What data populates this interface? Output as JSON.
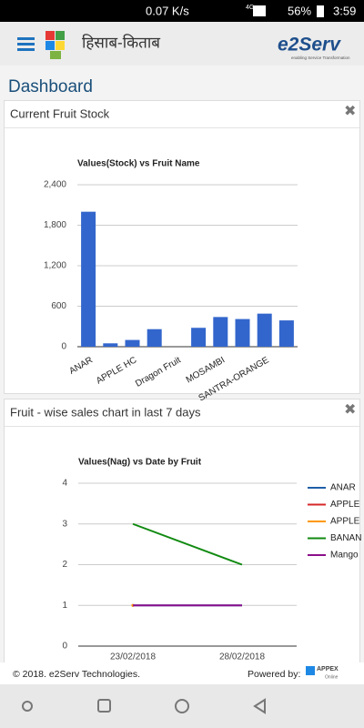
{
  "status_bar": {
    "speed": "0.07 K/s",
    "network": "4G",
    "battery": "56%",
    "time": "3:59"
  },
  "header": {
    "app_name": "हिसाब-किताब",
    "logo": "e2Serv",
    "tagline": "enabling Service Transformation"
  },
  "page_title": "Dashboard",
  "panels": [
    {
      "title": "Current Fruit Stock"
    },
    {
      "title": "Fruit - wise sales chart in last 7 days"
    }
  ],
  "chart_data": [
    {
      "type": "bar",
      "title": "Values(Stock) vs Fruit Name",
      "categories": [
        "ANAR",
        null,
        "APPLE HC",
        null,
        "Dragon Fruit",
        null,
        "MOSAMBI",
        null,
        "SANTRA-ORANGE",
        null
      ],
      "values": [
        2000,
        50,
        100,
        260,
        0,
        280,
        440,
        410,
        490,
        390
      ],
      "color": "#3366cc",
      "ylim": [
        0,
        2400
      ],
      "yticks": [
        0,
        {
          "value": 600,
          "label": "600"
        },
        {
          "value": 1200,
          "label": "1,200"
        },
        {
          "value": 1800,
          "label": "1,800"
        },
        {
          "value": 2400,
          "label": "2,400"
        }
      ],
      "grid": true
    },
    {
      "type": "line",
      "title": "Values(Nag) vs Date by Fruit",
      "categories": [
        "23/02/2018",
        "28/02/2018"
      ],
      "series": [
        {
          "name": "ANAR",
          "color": "#1f5fa8",
          "values": [
            1,
            1
          ]
        },
        {
          "name": "APPLE",
          "color": "#d62728",
          "values": [
            1,
            null
          ]
        },
        {
          "name": "APPLE",
          "color": "#ff9900",
          "values": [
            1,
            null
          ]
        },
        {
          "name": "BANAN",
          "color": "#108a10",
          "values": [
            3,
            2
          ]
        },
        {
          "name": "Mango",
          "color": "#8b108b",
          "values": [
            1,
            1
          ]
        }
      ],
      "ylim": [
        0,
        4
      ],
      "yticks": [
        0,
        1,
        2,
        3,
        4
      ],
      "grid": true,
      "legend": "right"
    }
  ],
  "footer": {
    "copyright": "© 2018. e2Serv Technologies.",
    "powered_by": "Powered by:",
    "brand": "APPEX",
    "brand_sub": "Online"
  }
}
